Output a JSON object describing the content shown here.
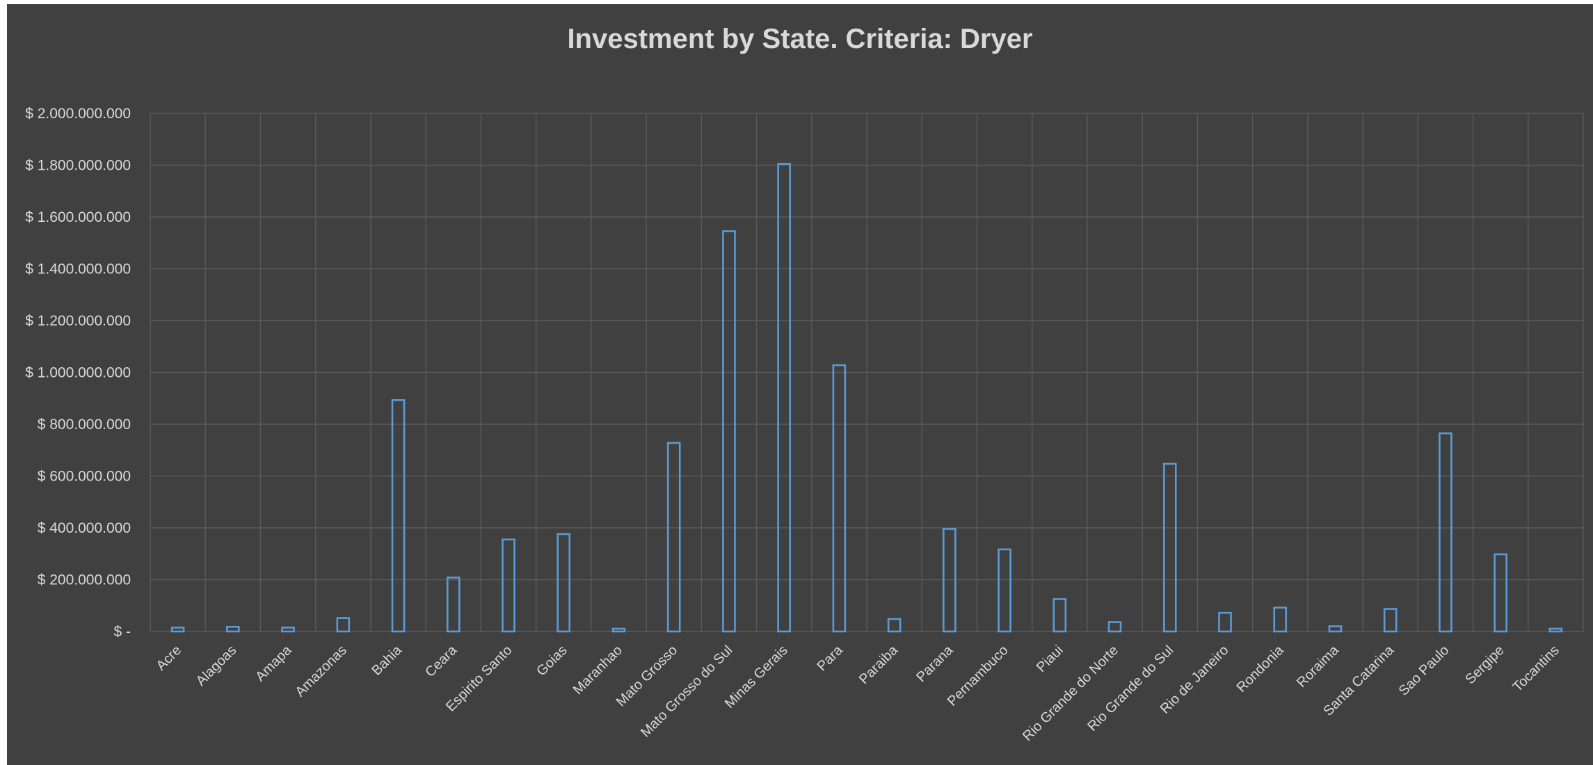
{
  "chart_data": {
    "type": "bar",
    "title": "Investment by State. Criteria: Dryer",
    "xlabel": "",
    "ylabel": "",
    "ylim": [
      0,
      2000000000
    ],
    "grid": true,
    "legend": "none",
    "y_tick_values": [
      0,
      200000000,
      400000000,
      600000000,
      800000000,
      1000000000,
      1200000000,
      1400000000,
      1600000000,
      1800000000,
      2000000000
    ],
    "y_tick_labels": [
      "$ -",
      "$ 200.000.000",
      "$ 400.000.000",
      "$ 600.000.000",
      "$ 800.000.000",
      "$ 1.000.000.000",
      "$ 1.200.000.000",
      "$ 1.400.000.000",
      "$ 1.600.000.000",
      "$ 1.800.000.000",
      "$ 2.000.000.000"
    ],
    "categories": [
      "Acre",
      "Alagoas",
      "Amapa",
      "Amazonas",
      "Bahia",
      "Ceara",
      "Espirito Santo",
      "Goias",
      "Maranhao",
      "Mato Grosso",
      "Mato Grosso do Sul",
      "Minas Gerais",
      "Para",
      "Paraiba",
      "Parana",
      "Pernambuco",
      "Piaui",
      "Rio Grande do Norte",
      "Rio Grande do Sul",
      "Rio de Janeiro",
      "Rondonia",
      "Roraima",
      "Santa Catarina",
      "Sao Paulo",
      "Sergipe",
      "Tocantins"
    ],
    "values": [
      15000000,
      18000000,
      15000000,
      52000000,
      893000000,
      208000000,
      355000000,
      376000000,
      8000000,
      728000000,
      1545000000,
      1805000000,
      1028000000,
      48000000,
      396000000,
      317000000,
      125000000,
      36000000,
      647000000,
      72000000,
      92000000,
      20000000,
      87000000,
      765000000,
      298000000,
      5000000
    ],
    "colors": {
      "background": "#404040",
      "bar_outline": "#5b9bd5",
      "text": "#d9d9d9",
      "grid": "#5a5a5a"
    }
  }
}
